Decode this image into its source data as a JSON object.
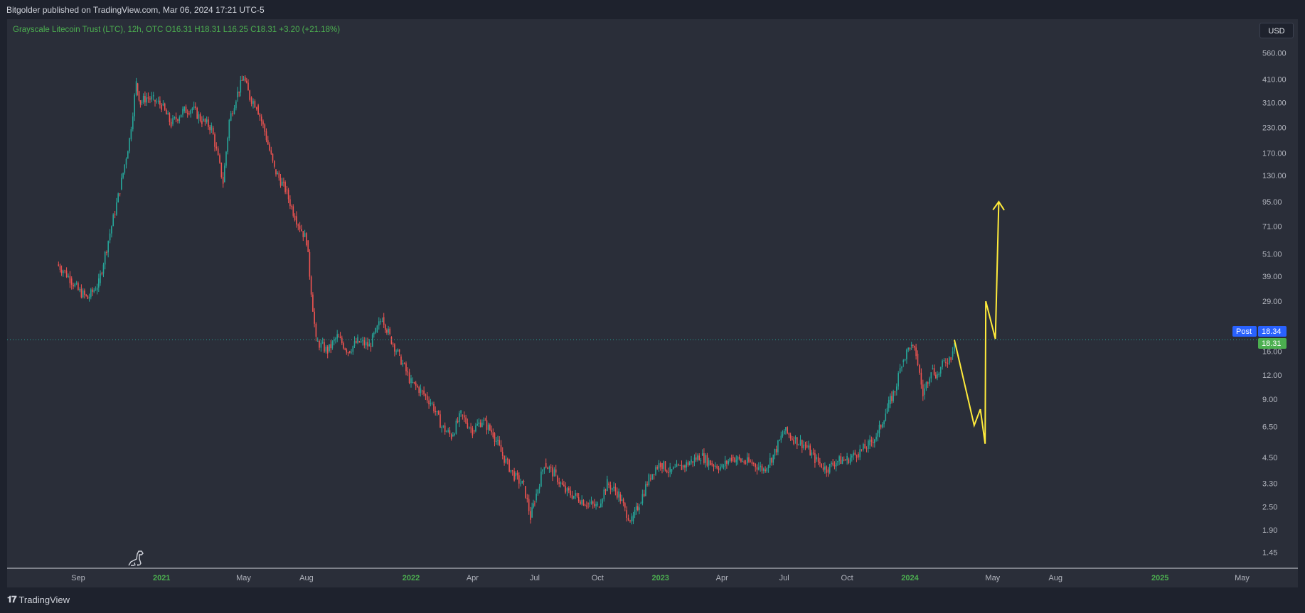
{
  "header": {
    "published_by": "Bitgolder published on TradingView.com, Mar 06, 2024 17:21 UTC-5"
  },
  "legend": {
    "text": "Grayscale Litecoin Trust (LTC), 12h, OTC  O16.31  H18.31  L16.25  C18.31  +3.20 (+21.18%)"
  },
  "currency_button": {
    "label": "USD"
  },
  "price_tags": {
    "post_label": "Post",
    "post_value": "18.34",
    "last_value": "18.31"
  },
  "footer": {
    "logo_text": "TradingView"
  },
  "colors": {
    "background": "#2a2e39",
    "up": "#26a69a",
    "down": "#ef5350",
    "projection": "#ffeb3b",
    "axis_text": "#b2b5be",
    "year_text": "#4caf50",
    "post_tag": "#2962ff",
    "last_tag": "#4caf50"
  },
  "chart_data": {
    "type": "line",
    "title": "Grayscale Litecoin Trust (LTC), 12h, OTC",
    "y_scale": "log",
    "y_ticks": [
      {
        "value": 1.45,
        "label": "1.45"
      },
      {
        "value": 1.9,
        "label": "1.90"
      },
      {
        "value": 2.5,
        "label": "2.50"
      },
      {
        "value": 3.3,
        "label": "3.30"
      },
      {
        "value": 4.5,
        "label": "4.50"
      },
      {
        "value": 6.5,
        "label": "6.50"
      },
      {
        "value": 9.0,
        "label": "9.00"
      },
      {
        "value": 12.0,
        "label": "12.00"
      },
      {
        "value": 16.0,
        "label": "16.00"
      },
      {
        "value": 29.0,
        "label": "29.00"
      },
      {
        "value": 39.0,
        "label": "39.00"
      },
      {
        "value": 51.0,
        "label": "51.00"
      },
      {
        "value": 71.0,
        "label": "71.00"
      },
      {
        "value": 95.0,
        "label": "95.00"
      },
      {
        "value": 130.0,
        "label": "130.00"
      },
      {
        "value": 170.0,
        "label": "170.00"
      },
      {
        "value": 230.0,
        "label": "230.00"
      },
      {
        "value": 310.0,
        "label": "310.00"
      },
      {
        "value": 410.0,
        "label": "410.00"
      },
      {
        "value": 560.0,
        "label": "560.00"
      }
    ],
    "x_ticks": [
      {
        "date": "2020-09-01",
        "label": "Sep",
        "year": false
      },
      {
        "date": "2021-01-01",
        "label": "2021",
        "year": true
      },
      {
        "date": "2021-05-01",
        "label": "May",
        "year": false
      },
      {
        "date": "2021-08-01",
        "label": "Aug",
        "year": false
      },
      {
        "date": "2022-01-01",
        "label": "2022",
        "year": true
      },
      {
        "date": "2022-04-01",
        "label": "Apr",
        "year": false
      },
      {
        "date": "2022-07-01",
        "label": "Jul",
        "year": false
      },
      {
        "date": "2022-10-01",
        "label": "Oct",
        "year": false
      },
      {
        "date": "2023-01-01",
        "label": "2023",
        "year": true
      },
      {
        "date": "2023-04-01",
        "label": "Apr",
        "year": false
      },
      {
        "date": "2023-07-01",
        "label": "Jul",
        "year": false
      },
      {
        "date": "2023-10-01",
        "label": "Oct",
        "year": false
      },
      {
        "date": "2024-01-01",
        "label": "2024",
        "year": true
      },
      {
        "date": "2024-05-01",
        "label": "May",
        "year": false
      },
      {
        "date": "2024-08-01",
        "label": "Aug",
        "year": false
      },
      {
        "date": "2025-01-01",
        "label": "2025",
        "year": true
      },
      {
        "date": "2025-05-01",
        "label": "May",
        "year": false
      }
    ],
    "series": [
      {
        "name": "Grayscale Litecoin Trust (LTC)",
        "kind": "candlestick",
        "x": [
          "2020-08-01",
          "2020-08-10",
          "2020-08-20",
          "2020-09-01",
          "2020-09-15",
          "2020-10-01",
          "2020-10-15",
          "2020-11-01",
          "2020-11-15",
          "2020-11-25",
          "2020-12-01",
          "2020-12-10",
          "2020-12-20",
          "2021-01-01",
          "2021-01-15",
          "2021-02-01",
          "2021-02-15",
          "2021-03-01",
          "2021-03-15",
          "2021-04-01",
          "2021-04-10",
          "2021-04-20",
          "2021-05-01",
          "2021-05-10",
          "2021-05-20",
          "2021-06-01",
          "2021-06-15",
          "2021-07-01",
          "2021-07-15",
          "2021-08-01",
          "2021-08-15",
          "2021-09-01",
          "2021-09-15",
          "2021-10-01",
          "2021-10-15",
          "2021-11-01",
          "2021-11-10",
          "2021-11-20",
          "2021-12-01",
          "2021-12-15",
          "2022-01-01",
          "2022-01-15",
          "2022-02-01",
          "2022-02-15",
          "2022-03-01",
          "2022-03-15",
          "2022-04-01",
          "2022-04-15",
          "2022-05-01",
          "2022-05-15",
          "2022-06-01",
          "2022-06-15",
          "2022-06-25",
          "2022-07-01",
          "2022-07-15",
          "2022-08-01",
          "2022-08-15",
          "2022-09-01",
          "2022-09-15",
          "2022-10-01",
          "2022-10-15",
          "2022-11-01",
          "2022-11-10",
          "2022-11-20",
          "2022-12-01",
          "2022-12-15",
          "2022-12-25",
          "2023-01-01",
          "2023-01-15",
          "2023-02-01",
          "2023-02-15",
          "2023-03-01",
          "2023-03-15",
          "2023-04-01",
          "2023-04-15",
          "2023-05-01",
          "2023-05-15",
          "2023-06-01",
          "2023-06-15",
          "2023-07-01",
          "2023-07-15",
          "2023-08-01",
          "2023-08-15",
          "2023-09-01",
          "2023-09-15",
          "2023-10-01",
          "2023-10-15",
          "2023-11-01",
          "2023-11-15",
          "2023-12-01",
          "2023-12-10",
          "2023-12-20",
          "2024-01-01",
          "2024-01-10",
          "2024-01-20",
          "2024-02-01",
          "2024-02-10",
          "2024-02-20",
          "2024-03-01",
          "2024-03-06"
        ],
        "close": [
          45,
          42,
          38,
          33,
          30,
          36,
          60,
          110,
          200,
          390,
          310,
          330,
          320,
          300,
          240,
          280,
          290,
          250,
          230,
          120,
          250,
          330,
          420,
          330,
          300,
          220,
          140,
          110,
          80,
          60,
          18,
          16,
          19,
          16,
          18,
          17,
          20,
          24,
          19,
          15,
          11,
          10,
          8.5,
          6.5,
          5.8,
          7.5,
          6.2,
          7.0,
          6.0,
          4.6,
          3.6,
          3.2,
          2.2,
          2.7,
          4.2,
          3.6,
          3.0,
          2.8,
          2.6,
          2.5,
          3.3,
          2.9,
          2.4,
          2.1,
          2.6,
          3.5,
          4.0,
          4.2,
          3.8,
          4.0,
          4.3,
          4.6,
          4.2,
          4.0,
          4.5,
          4.3,
          4.2,
          3.9,
          4.6,
          6.2,
          5.6,
          5.2,
          4.4,
          3.9,
          4.3,
          4.4,
          4.7,
          5.2,
          6.0,
          8.5,
          10.0,
          14.0,
          17.0,
          15.5,
          9.5,
          13.0,
          12.0,
          14.0,
          15.0,
          18.31
        ]
      },
      {
        "name": "Projection",
        "kind": "polyline",
        "x": [
          "2024-03-06",
          "2024-04-04",
          "2024-04-13",
          "2024-04-20",
          "2024-04-21",
          "2024-05-05",
          "2024-05-10"
        ],
        "y": [
          18.31,
          6.6,
          8.0,
          5.3,
          29.0,
          18.5,
          95.0
        ]
      }
    ],
    "x_range": [
      "2020-05-20",
      "2025-05-15"
    ],
    "ylim": [
      1.2,
      720
    ],
    "grid": false,
    "current_price_line": 18.31
  }
}
